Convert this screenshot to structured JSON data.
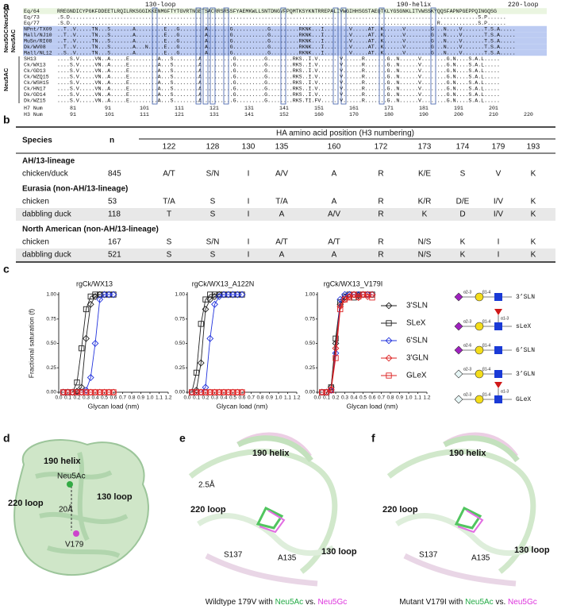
{
  "panel_a": {
    "label": "a",
    "regions": [
      "130-loop",
      "190-helix",
      "220-loop"
    ],
    "groups": [
      {
        "labels": [
          "Neu5GC"
        ],
        "color": "#eaf5e0",
        "rows": [
          {
            "name": "Eq/64",
            "seq": "RREGNDICYPGKFDDEETLRQILRKSGGIKKENMGFTYTGVRTNGETSACRRSRSSFYAEMKWLLSNTDNGVFPQMTKSYKNTRREPALIVWGIHHSGSTAEQTKLYGSGNKLITVWSSKYQQSFAPNPGEPPQINGQSG"
          },
          {
            "name": "Eq/73",
            "seq": ".S.D..................................................................................................................................S.P......"
          },
          {
            "name": "Eq/77",
            "seq": ".S.D.....................................................................................................................R............S.P......"
          }
        ]
      },
      {
        "labels": [
          "Neu5GC",
          "Neu5AC"
        ],
        "color": "#bccbf2",
        "rows": [
          {
            "name": "NPnt/TX09",
            "seq": "..T..V.....TN...S.......A.........E...G........A.......G...........G.........RKNK...I........V.....AT..K......V........G...N....V.......T.S.A....."
          },
          {
            "name": "Mall/NJ10",
            "seq": "..T..V.....TN...S.......A.........E...G........A.......G...........G.........RKNK...I........V.....AT..K......V........G...N....V.......T.S.A....."
          },
          {
            "name": "MuSn/RI08",
            "seq": "..T..V.....TN...S.......A.........E...G........A.......G...........G.........RKNK...I........V.....AT..K......V........G...N....V.......T.S.A....."
          },
          {
            "name": "Dk/WV08",
            "seq": "..T..V.....TN...S.......A...N.....E...G........A.......G...........G.........RKNK...I........V.....AT..K......V........G...N....V.......T.S.A....."
          },
          {
            "name": "Mall/NL12",
            "seq": "..S..V.....TN...S.......A.........E...G........A.......G...........G.........RKNK...I........V.....AT..K......V........G...N....V.......T.S.A....."
          }
        ]
      },
      {
        "labels": [
          "Neu5AC"
        ],
        "rows": [
          {
            "name": "SH13",
            "seq": "....S.V.....VN..A.....E.........A...S........A..........G.........G........RKS..I.V.......V......R.......G..N......V........G.N....S.A.L....."
          },
          {
            "name": "Ck/WX13",
            "seq": "....S.V.....VN..A.....E.........A...S........A..........G.........G........RKS..I.V.......V......R.......G..N......V........G.N....S.A.L....."
          },
          {
            "name": "Ck/GD13",
            "seq": "....S.V.....VN..A.....E.........A...S........A..........G.........G........RKS..I.V.......V......R.......G..N......V........G.N....S.A.L....."
          },
          {
            "name": "Ck/WZQ15",
            "seq": "....S.V.....VN..A.....E.........A...S........A..........G.........G........RKS..I.V.......V......R.......G..N......V........G.N....S.A.L....."
          },
          {
            "name": "Ck/WSH15",
            "seq": "....S.V.....VN..A.....E.........A...S........A..........G.........G........RKS..I.V.......V......R.......G..N......V........G.N....S.A.L....."
          },
          {
            "name": "Ck/HN17",
            "seq": "....S.V.....VN..A.....E.........A...S........A..........G.........G........RKS..I.V.......V......R.......G..N......V........G.N....S.A.L....."
          },
          {
            "name": "Dk/GD14",
            "seq": "....S.V.....VN..A.....E.........A...S........A..........G.........G........RKS..I.V.......V......R.......G..N......V........G.N....S.A.L....."
          },
          {
            "name": "Dk/WZ15",
            "seq": "....S.V.....VN..A.....E.........A...S........A..........G.........G........RKS.TI.FV......V......R.......G..N......V........G.N....S.A.L....."
          }
        ]
      }
    ],
    "numbering": [
      {
        "name": "H7 Num",
        "ticks": [
          81,
          91,
          101,
          111,
          121,
          131,
          141,
          151,
          161,
          171,
          181,
          191,
          201
        ]
      },
      {
        "name": "H3 Num",
        "ticks": [
          91,
          101,
          111,
          121,
          131,
          141,
          152,
          160,
          170,
          180,
          190,
          200,
          210,
          220
        ]
      }
    ]
  },
  "panel_b": {
    "label": "b",
    "header": {
      "species": "Species",
      "n": "n",
      "positions_title": "HA amino acid position (H3 numbering)",
      "positions": [
        122,
        128,
        130,
        135,
        160,
        172,
        173,
        174,
        179,
        193
      ]
    },
    "groups": [
      {
        "name": "AH/13-lineage",
        "rows": [
          {
            "species": "chicken/duck",
            "n": 845,
            "cells": [
              "A/T",
              "S/N",
              "I",
              "A/V",
              "A",
              "R",
              "K/E",
              "S",
              "V",
              "K"
            ]
          }
        ]
      },
      {
        "name": "Eurasia (non-AH/13-lineage)",
        "rows": [
          {
            "species": "chicken",
            "n": 53,
            "cells": [
              "T/A",
              "S",
              "I",
              "T/A",
              "A",
              "R",
              "K/R",
              "D/E",
              "I/V",
              "K"
            ]
          },
          {
            "species": "dabbling duck",
            "n": 118,
            "cells": [
              "T",
              "S",
              "I",
              "A",
              "A/V",
              "R",
              "K",
              "D",
              "I/V",
              "K"
            ]
          }
        ]
      },
      {
        "name": "North American (non-AH/13-lineage)",
        "rows": [
          {
            "species": "chicken",
            "n": 167,
            "cells": [
              "S",
              "S/N",
              "I",
              "A/T",
              "A/T",
              "R",
              "N/S",
              "K",
              "I",
              "K"
            ]
          },
          {
            "species": "dabbling duck",
            "n": 521,
            "cells": [
              "S",
              "S",
              "I",
              "A",
              "A",
              "R",
              "N/S",
              "K",
              "I",
              "K"
            ]
          }
        ]
      }
    ]
  },
  "panel_c": {
    "label": "c",
    "glycans": [
      {
        "label": "3’SLN",
        "links": [
          "α2-3",
          "β1-4"
        ]
      },
      {
        "label": "sLeX",
        "links": [
          "α2-3",
          "β1-4",
          "α1-3"
        ]
      },
      {
        "label": "6’SLN",
        "links": [
          "α2-6",
          "β1-4"
        ]
      },
      {
        "label": "3’GLN",
        "links": [
          "α2-3",
          "β1-4"
        ]
      },
      {
        "label": "GLeX",
        "links": [
          "α2-3",
          "β1-4",
          "α1-3"
        ]
      }
    ]
  },
  "chart_data": [
    {
      "type": "line",
      "title": "rgCk/WX13",
      "xlabel": "Glycan load (nm)",
      "ylabel": "Fractional saturation (f)",
      "xlim": [
        0,
        1.2
      ],
      "xticks": [
        {
          "value": 0,
          "label": "0.0"
        },
        0.1,
        0.2,
        0.3,
        0.4,
        0.5,
        0.6,
        0.7,
        0.8,
        0.9,
        {
          "value": 1,
          "label": "1.0"
        },
        1.1,
        1.2
      ],
      "ylim": [
        0,
        1
      ],
      "yticks": [
        {
          "value": 0,
          "label": "0.00"
        },
        0.25,
        {
          "value": 0.5,
          "label": "0.50"
        },
        0.75,
        {
          "value": 1,
          "label": "1.00"
        }
      ],
      "x": [
        0.05,
        0.1,
        0.15,
        0.2,
        0.25,
        0.3,
        0.35,
        0.4,
        0.45,
        0.5,
        0.55,
        0.6
      ],
      "series": [
        {
          "color": "#222222",
          "marker": "diamond",
          "values": [
            0,
            0,
            0,
            0.01,
            0.05,
            0.55,
            0.9,
            0.98,
            1,
            1,
            1,
            1
          ]
        },
        {
          "color": "#222222",
          "marker": "square",
          "values": [
            0,
            0,
            0,
            0.1,
            0.45,
            0.85,
            0.98,
            1,
            1,
            1,
            1,
            1
          ]
        },
        {
          "color": "#2233dd",
          "marker": "diamond",
          "values": [
            0,
            0,
            0,
            0,
            0,
            0.02,
            0.15,
            0.5,
            0.95,
            1,
            1,
            1
          ]
        },
        {
          "color": "#dd2222",
          "marker": "diamond",
          "values": [
            0,
            0,
            0,
            0,
            0,
            0,
            0,
            0,
            0,
            0,
            0,
            0
          ]
        },
        {
          "color": "#dd2222",
          "marker": "square",
          "values": [
            0,
            0,
            0,
            0,
            0,
            0,
            0,
            0,
            0,
            0,
            0,
            0
          ]
        }
      ]
    },
    {
      "type": "line",
      "title": "rgCk/WX13_A122N",
      "xlabel": "Glycan load (nm)",
      "xlim": [
        0,
        1.2
      ],
      "xticks": [
        {
          "value": 0,
          "label": "0.0"
        },
        0.1,
        0.2,
        0.3,
        0.4,
        0.5,
        0.6,
        0.7,
        0.8,
        0.9,
        {
          "value": 1,
          "label": "1.0"
        },
        1.1,
        1.2
      ],
      "ylim": [
        0,
        1
      ],
      "yticks": [
        {
          "value": 0,
          "label": "0.00"
        },
        0.25,
        {
          "value": 0.5,
          "label": "0.50"
        },
        0.75,
        {
          "value": 1,
          "label": "1.00"
        }
      ],
      "x": [
        0.05,
        0.1,
        0.15,
        0.2,
        0.25,
        0.3,
        0.35,
        0.4,
        0.45,
        0.5,
        0.55,
        0.6
      ],
      "series": [
        {
          "color": "#222222",
          "marker": "diamond",
          "values": [
            0,
            0.02,
            0.3,
            0.85,
            0.95,
            0.98,
            1,
            1,
            1,
            1,
            1,
            1
          ]
        },
        {
          "color": "#222222",
          "marker": "square",
          "values": [
            0,
            0.2,
            0.7,
            0.95,
            1,
            1,
            1,
            1,
            1,
            1,
            1,
            1
          ]
        },
        {
          "color": "#2233dd",
          "marker": "diamond",
          "values": [
            0,
            0,
            0,
            0.05,
            0.55,
            0.9,
            0.98,
            1,
            1,
            1,
            1,
            1
          ]
        },
        {
          "color": "#dd2222",
          "marker": "diamond",
          "values": [
            0,
            0,
            0,
            0,
            0,
            0,
            0,
            0,
            0,
            0,
            0,
            0
          ]
        },
        {
          "color": "#dd2222",
          "marker": "square",
          "values": [
            0,
            0,
            0,
            0,
            0,
            0,
            0,
            0,
            0,
            0,
            0,
            0
          ]
        }
      ]
    },
    {
      "type": "line",
      "title": "rgCk/WX13_V179I",
      "xlabel": "Glycan load (nm)",
      "legend": "right",
      "xlim": [
        0,
        1.2
      ],
      "xticks": [
        {
          "value": 0,
          "label": "0.0"
        },
        0.1,
        0.2,
        0.3,
        0.4,
        0.5,
        0.6,
        0.7,
        0.8,
        0.9,
        {
          "value": 1,
          "label": "1.0"
        },
        1.1,
        1.2
      ],
      "ylim": [
        0,
        1
      ],
      "yticks": [
        {
          "value": 0,
          "label": "0.00"
        },
        0.25,
        {
          "value": 0.5,
          "label": "0.50"
        },
        0.75,
        {
          "value": 1,
          "label": "1.00"
        }
      ],
      "x": [
        0.05,
        0.1,
        0.15,
        0.2,
        0.25,
        0.3,
        0.35,
        0.4,
        0.45,
        0.5,
        0.55,
        0.6
      ],
      "series": [
        {
          "name": "3'SLN",
          "color": "#222222",
          "marker": "diamond",
          "values": [
            0,
            0,
            0.05,
            0.5,
            0.9,
            0.97,
            1,
            1,
            0.99,
            1,
            1,
            1
          ]
        },
        {
          "name": "SLeX",
          "color": "#222222",
          "marker": "square",
          "values": [
            0,
            0,
            0.05,
            0.55,
            0.92,
            0.98,
            1,
            0.97,
            1,
            1,
            1,
            1
          ]
        },
        {
          "name": "6'SLN",
          "color": "#2233dd",
          "marker": "diamond",
          "values": [
            0,
            0,
            0.02,
            0.4,
            0.95,
            1,
            1,
            1,
            1,
            1,
            1,
            1
          ]
        },
        {
          "name": "3'GLN",
          "color": "#dd2222",
          "marker": "diamond",
          "values": [
            0,
            0,
            0.03,
            0.45,
            0.88,
            0.95,
            0.98,
            1,
            0.97,
            1,
            0.98,
            1
          ]
        },
        {
          "name": "GLeX",
          "color": "#dd2222",
          "marker": "square",
          "values": [
            0,
            0,
            0.02,
            0.35,
            0.85,
            0.95,
            0.97,
            1,
            0.98,
            1,
            1,
            0.97
          ]
        }
      ]
    }
  ],
  "panel_d": {
    "label": "d",
    "labels": [
      "190 helix",
      "Neu5Ac",
      "220 loop",
      "130 loop",
      "20Å",
      "V179"
    ]
  },
  "panel_e": {
    "label": "e",
    "labels": [
      "190 helix",
      "2.5Å",
      "220 loop",
      "S137",
      "A135",
      "130 loop"
    ],
    "caption": [
      {
        "text": "Wildtype 179V with "
      },
      {
        "text": "Neu5Ac",
        "color": "#22aa44"
      },
      {
        "text": " vs. "
      },
      {
        "text": "Neu5Gc",
        "color": "#dd33dd"
      }
    ]
  },
  "panel_f": {
    "label": "f",
    "labels": [
      "190 helix",
      "220 loop",
      "S137",
      "A135",
      "130 loop"
    ],
    "caption": [
      {
        "text": "Mutant V179I with "
      },
      {
        "text": "Neu5Ac",
        "color": "#22aa44"
      },
      {
        "text": " vs. "
      },
      {
        "text": "Neu5Gc",
        "color": "#dd33dd"
      }
    ]
  }
}
